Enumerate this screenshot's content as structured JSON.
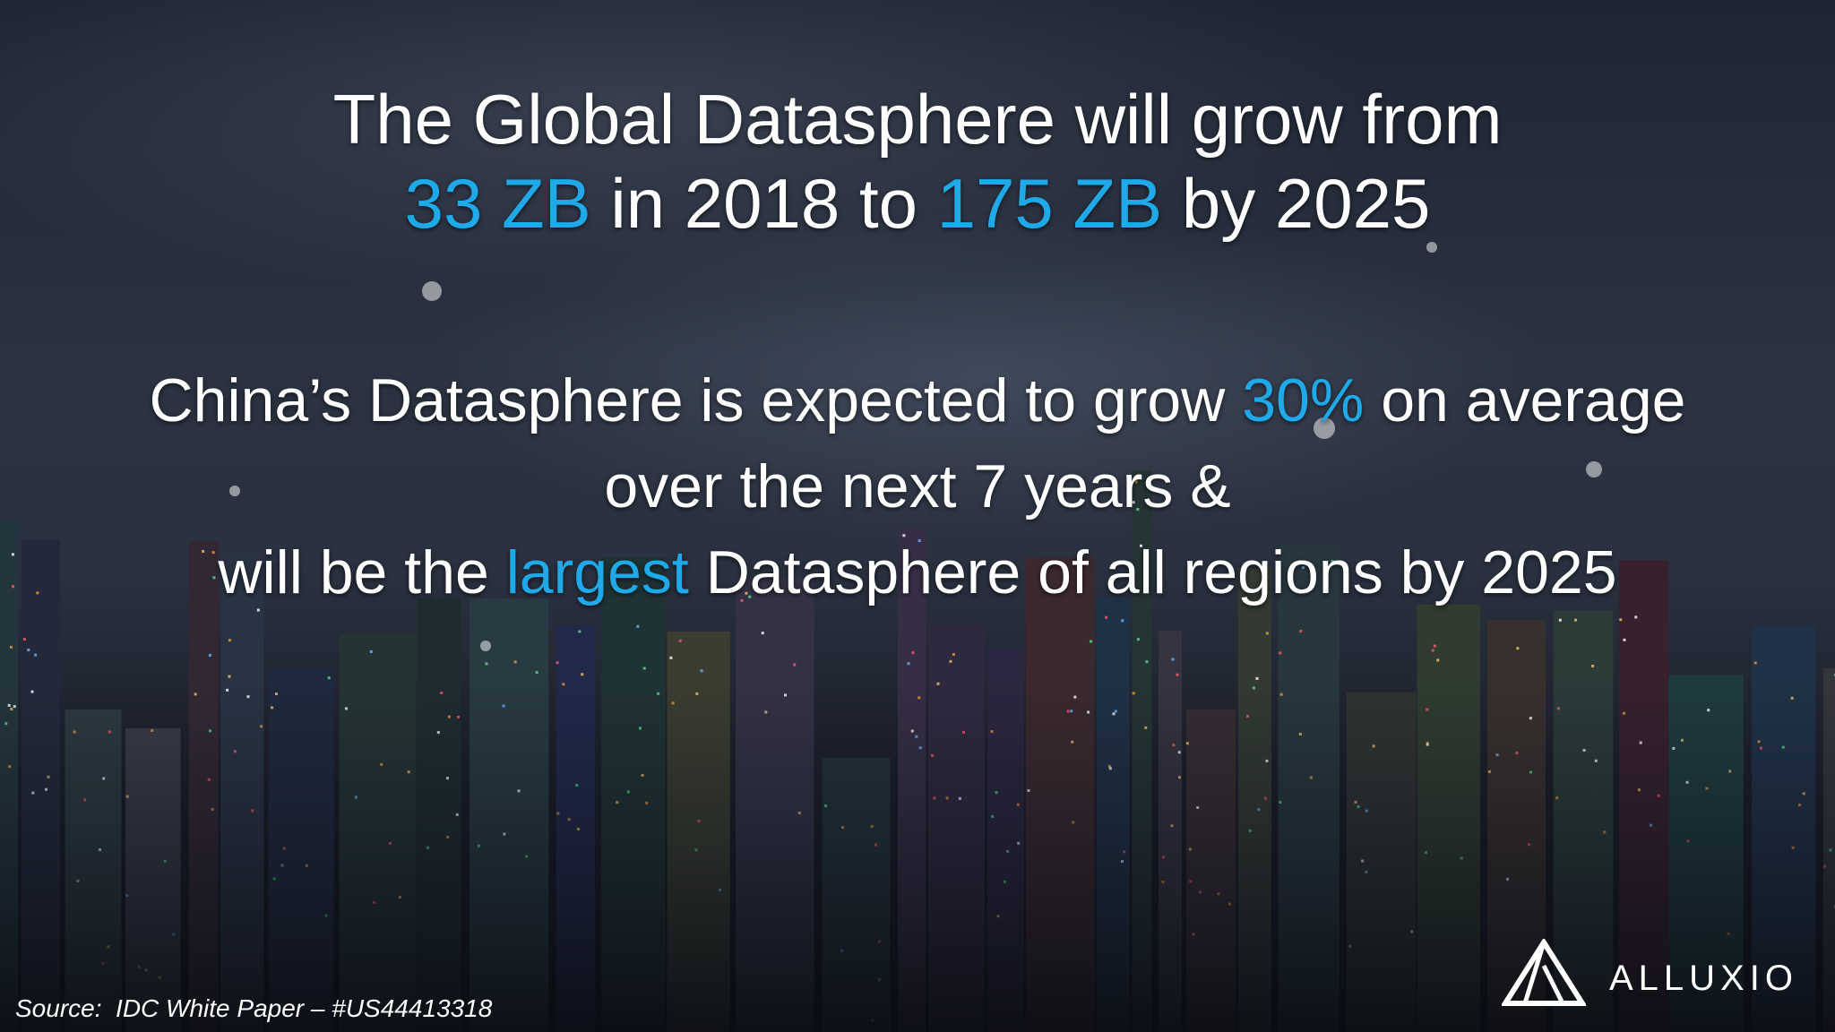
{
  "headline": {
    "line1": "The Global Datasphere will grow from",
    "line2": [
      "33 ZB",
      " in 2018 to ",
      "175 ZB",
      " by 2025"
    ]
  },
  "body": {
    "line1": [
      "China’s Datasphere is expected to grow ",
      "30%",
      " on average"
    ],
    "line2": "over the next 7 years &",
    "line3": [
      "will be the ",
      "largest",
      " Datasphere of all regions by 2025"
    ]
  },
  "source": "Source:  IDC White Paper – #US44413318",
  "logo": "ALLUXIO"
}
